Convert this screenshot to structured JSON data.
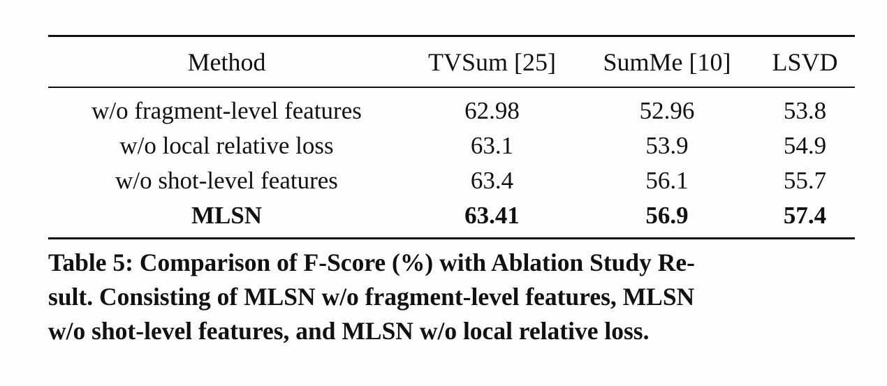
{
  "table": {
    "headers": [
      "Method",
      "TVSum [25]",
      "SumMe [10]",
      "LSVD"
    ],
    "rows": [
      {
        "method": "w/o fragment-level features",
        "tvsum": "62.98",
        "summe": "52.96",
        "lsvd": "53.8"
      },
      {
        "method": "w/o local relative loss",
        "tvsum": "63.1",
        "summe": "53.9",
        "lsvd": "54.9"
      },
      {
        "method": "w/o shot-level features",
        "tvsum": "63.4",
        "summe": "56.1",
        "lsvd": "55.7"
      },
      {
        "method": "MLSN",
        "tvsum": "63.41",
        "summe": "56.9",
        "lsvd": "57.4"
      }
    ]
  },
  "caption": {
    "line1": "Table 5: Comparison of F-Score (%) with Ablation Study Re-",
    "line2": "sult. Consisting of MLSN w/o fragment-level features, MLSN",
    "line3": "w/o shot-level features, and MLSN w/o local relative loss."
  }
}
